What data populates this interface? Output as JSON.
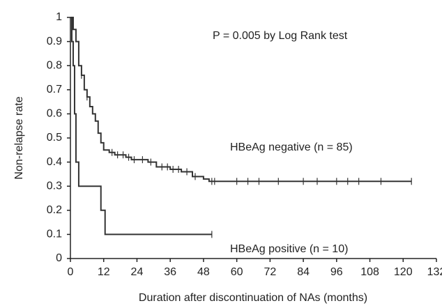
{
  "chart_data": {
    "type": "step",
    "annotation": "P = 0.005 by Log Rank test",
    "x_label": "Duration after discontinuation of NAs (months)",
    "y_label": "Non-relapse rate",
    "series": [
      {
        "name": "HBeAg negative (n = 85)",
        "color": "#333333",
        "x": [
          0,
          1,
          2,
          3,
          4,
          5,
          6,
          7,
          8,
          9,
          10,
          11,
          12,
          14,
          16,
          20,
          22,
          28,
          31,
          36,
          40,
          44,
          48,
          50,
          123
        ],
        "values": [
          1,
          0.95,
          0.9,
          0.8,
          0.76,
          0.7,
          0.67,
          0.63,
          0.6,
          0.57,
          0.52,
          0.48,
          0.45,
          0.44,
          0.43,
          0.42,
          0.41,
          0.4,
          0.38,
          0.37,
          0.36,
          0.34,
          0.33,
          0.32,
          0.32
        ],
        "censored_x": [
          4,
          6,
          15,
          17,
          19,
          21,
          23,
          26,
          29,
          33,
          35,
          37,
          39,
          42,
          45,
          51,
          52,
          60,
          64,
          68,
          75,
          84,
          89,
          96,
          100,
          104,
          112,
          123
        ]
      },
      {
        "name": "HBeAg positive (n = 10)",
        "color": "#333333",
        "x": [
          0,
          0.5,
          1,
          1.5,
          2,
          3,
          11,
          12.5,
          51
        ],
        "values": [
          1,
          0.9,
          0.8,
          0.6,
          0.4,
          0.3,
          0.2,
          0.1,
          0.1
        ],
        "censored_x": [
          51
        ]
      }
    ],
    "xlim": [
      0,
      132
    ],
    "xticks": [
      0,
      12,
      24,
      36,
      48,
      60,
      72,
      84,
      96,
      108,
      120,
      132
    ],
    "ylim": [
      0,
      1
    ],
    "yticks": [
      0,
      0.1,
      0.2,
      0.3,
      0.4,
      0.5,
      0.6,
      0.7,
      0.8,
      0.9,
      1
    ]
  }
}
